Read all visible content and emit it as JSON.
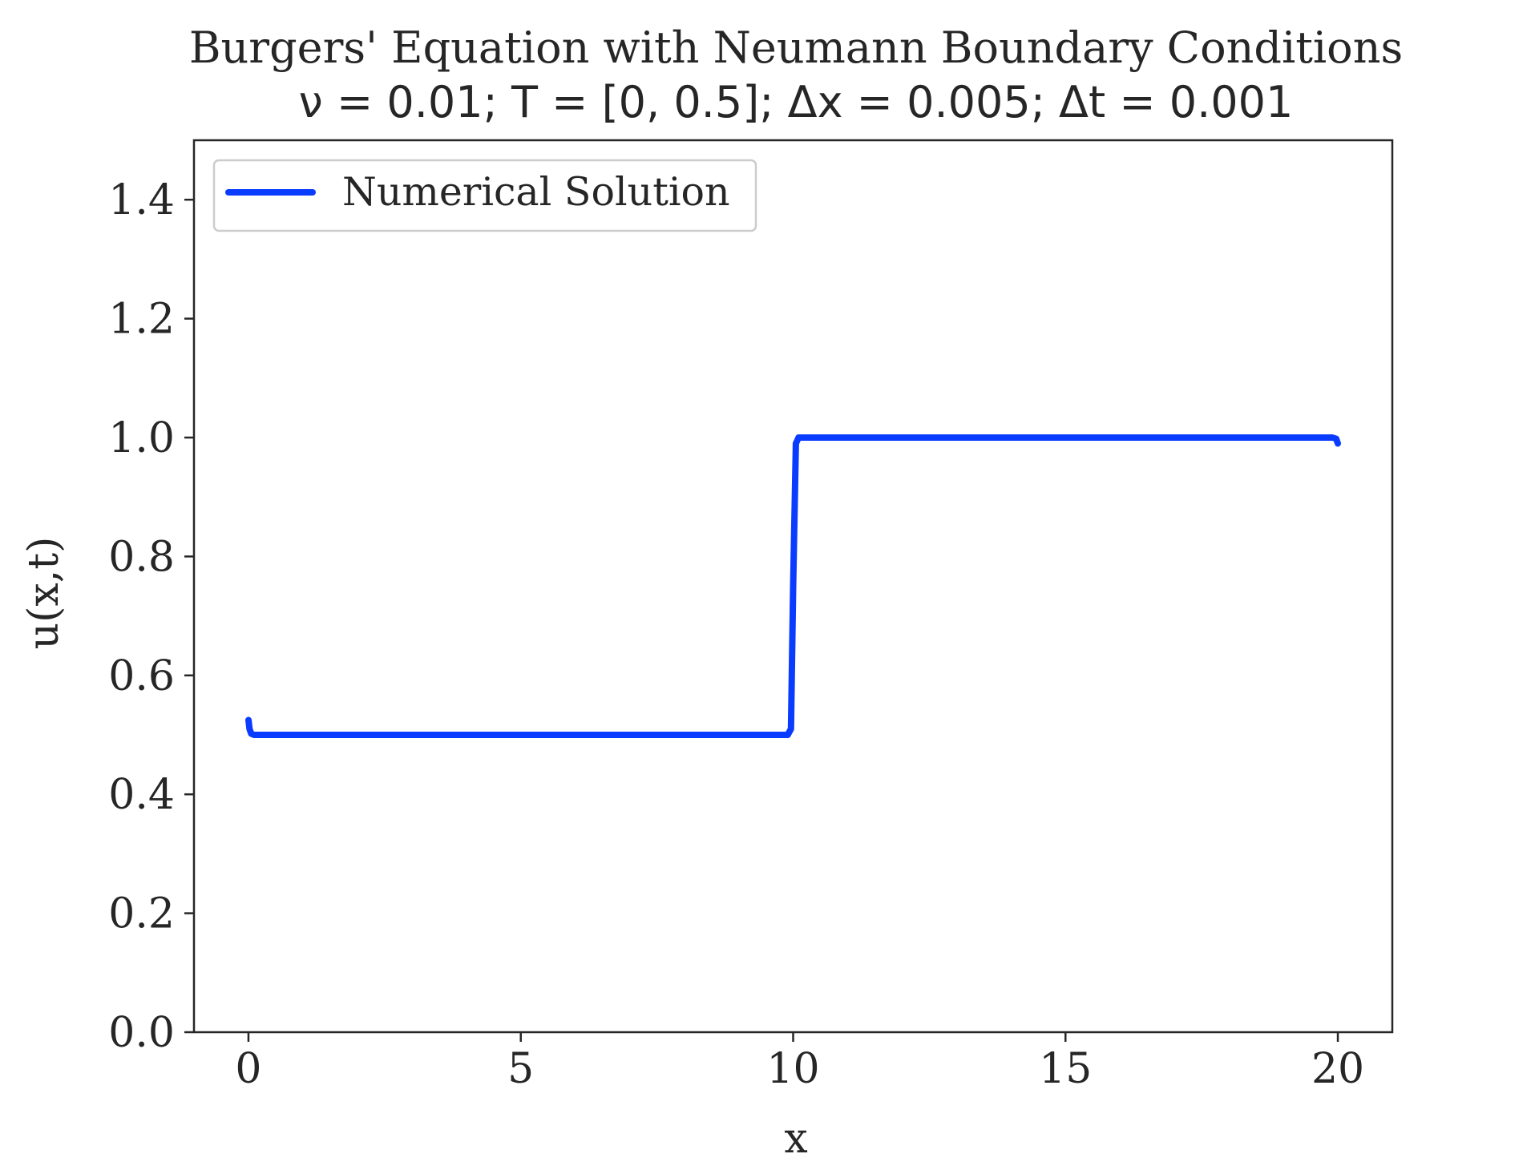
{
  "chart_data": {
    "type": "line",
    "title": "Burgers' Equation with Neumann Boundary Conditions",
    "subtitle": "ν = 0.01; T = [0, 0.5]; Δx = 0.005; Δt = 0.001",
    "xlabel": "x",
    "ylabel": "u(x,t)",
    "xlim": [
      -1,
      21
    ],
    "ylim": [
      0,
      1.5
    ],
    "xticks": [
      0,
      5,
      10,
      15,
      20
    ],
    "xtick_labels": [
      "0",
      "5",
      "10",
      "15",
      "20"
    ],
    "yticks": [
      0.0,
      0.2,
      0.4,
      0.6,
      0.8,
      1.0,
      1.2,
      1.4
    ],
    "ytick_labels": [
      "0.0",
      "0.2",
      "0.4",
      "0.6",
      "0.8",
      "1.0",
      "1.2",
      "1.4"
    ],
    "grid": false,
    "legend": {
      "placement": "upper-left",
      "entries": [
        "Numerical Solution"
      ]
    },
    "series": [
      {
        "name": "Numerical Solution",
        "color": "#0a3cff",
        "x": [
          0,
          0.02,
          0.05,
          0.1,
          0.2,
          1,
          5,
          9.9,
          9.96,
          10.0,
          10.05,
          10.1,
          10.2,
          15,
          19.9,
          19.97,
          20.0
        ],
        "y": [
          0.525,
          0.51,
          0.502,
          0.5,
          0.5,
          0.5,
          0.5,
          0.5,
          0.51,
          0.75,
          0.99,
          1.0,
          1.0,
          1.0,
          1.0,
          0.998,
          0.99
        ]
      }
    ]
  }
}
